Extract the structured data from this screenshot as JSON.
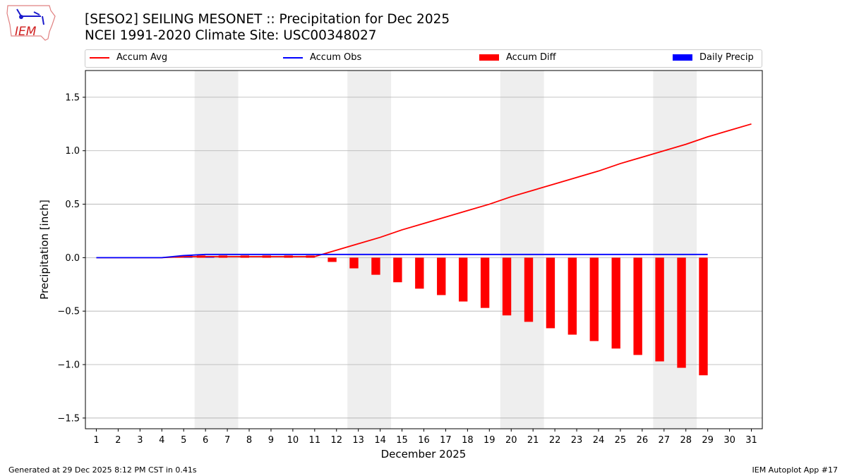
{
  "title_line1": "[SESO2] SEILING MESONET :: Precipitation for Dec 2025",
  "title_line2": "NCEI 1991-2020 Climate Site: USC00348027",
  "logo_text": "IEM",
  "footer_left": "Generated at 29 Dec 2025 8:12 PM CST in 0.41s",
  "footer_right": "IEM Autoplot App #17",
  "chart_data": {
    "type": "line+bar",
    "xlabel": "December 2025",
    "ylabel": "Precipitation [inch]",
    "xlim": [
      0.5,
      31.5
    ],
    "ylim": [
      -1.6,
      1.75
    ],
    "yticks": [
      -1.5,
      -1.0,
      -0.5,
      0.0,
      0.5,
      1.0,
      1.5
    ],
    "ytick_labels": [
      "−1.5",
      "−1.0",
      "−0.5",
      "0.0",
      "0.5",
      "1.0",
      "1.5"
    ],
    "xticks": [
      1,
      2,
      3,
      4,
      5,
      6,
      7,
      8,
      9,
      10,
      11,
      12,
      13,
      14,
      15,
      16,
      17,
      18,
      19,
      20,
      21,
      22,
      23,
      24,
      25,
      26,
      27,
      28,
      29,
      30,
      31
    ],
    "grid": "y",
    "legend_position": "top",
    "weekend_shading": [
      [
        5.5,
        7.5
      ],
      [
        12.5,
        14.5
      ],
      [
        19.5,
        21.5
      ],
      [
        26.5,
        28.5
      ]
    ],
    "colors": {
      "accum_avg": "#ff0000",
      "accum_obs": "#0000ff",
      "accum_diff": "#ff0000",
      "daily_precip": "#0000ff",
      "shade": "#eeeeee"
    },
    "series": [
      {
        "name": "Accum Avg",
        "type": "line",
        "x": [
          1,
          2,
          3,
          4,
          5,
          6,
          7,
          8,
          9,
          10,
          11,
          12,
          13,
          14,
          15,
          16,
          17,
          18,
          19,
          20,
          21,
          22,
          23,
          24,
          25,
          26,
          27,
          28,
          29,
          30,
          31
        ],
        "values": [
          0,
          0,
          0,
          0,
          0.01,
          0.01,
          0.01,
          0.01,
          0.01,
          0.01,
          0.01,
          0.07,
          0.13,
          0.19,
          0.26,
          0.32,
          0.38,
          0.44,
          0.5,
          0.57,
          0.63,
          0.69,
          0.75,
          0.81,
          0.88,
          0.94,
          1.0,
          1.06,
          1.13,
          1.19,
          1.25
        ]
      },
      {
        "name": "Accum Obs",
        "type": "line",
        "x": [
          1,
          2,
          3,
          4,
          5,
          6,
          7,
          8,
          9,
          10,
          11,
          12,
          13,
          14,
          15,
          16,
          17,
          18,
          19,
          20,
          21,
          22,
          23,
          24,
          25,
          26,
          27,
          28,
          29
        ],
        "values": [
          0,
          0,
          0,
          0,
          0.02,
          0.03,
          0.03,
          0.03,
          0.03,
          0.03,
          0.03,
          0.03,
          0.03,
          0.03,
          0.03,
          0.03,
          0.03,
          0.03,
          0.03,
          0.03,
          0.03,
          0.03,
          0.03,
          0.03,
          0.03,
          0.03,
          0.03,
          0.03,
          0.03
        ]
      },
      {
        "name": "Accum Diff",
        "type": "bar",
        "x": [
          1,
          2,
          3,
          4,
          5,
          6,
          7,
          8,
          9,
          10,
          11,
          12,
          13,
          14,
          15,
          16,
          17,
          18,
          19,
          20,
          21,
          22,
          23,
          24,
          25,
          26,
          27,
          28,
          29
        ],
        "values": [
          0,
          0,
          0,
          0,
          0.01,
          0.02,
          0.02,
          0.02,
          0.02,
          0.02,
          0.02,
          -0.04,
          -0.1,
          -0.16,
          -0.23,
          -0.29,
          -0.35,
          -0.41,
          -0.47,
          -0.54,
          -0.6,
          -0.66,
          -0.72,
          -0.78,
          -0.85,
          -0.91,
          -0.97,
          -1.03,
          -1.1
        ]
      },
      {
        "name": "Daily Precip",
        "type": "bar",
        "x": [
          5,
          6
        ],
        "values": [
          0.02,
          0.01
        ]
      }
    ]
  }
}
